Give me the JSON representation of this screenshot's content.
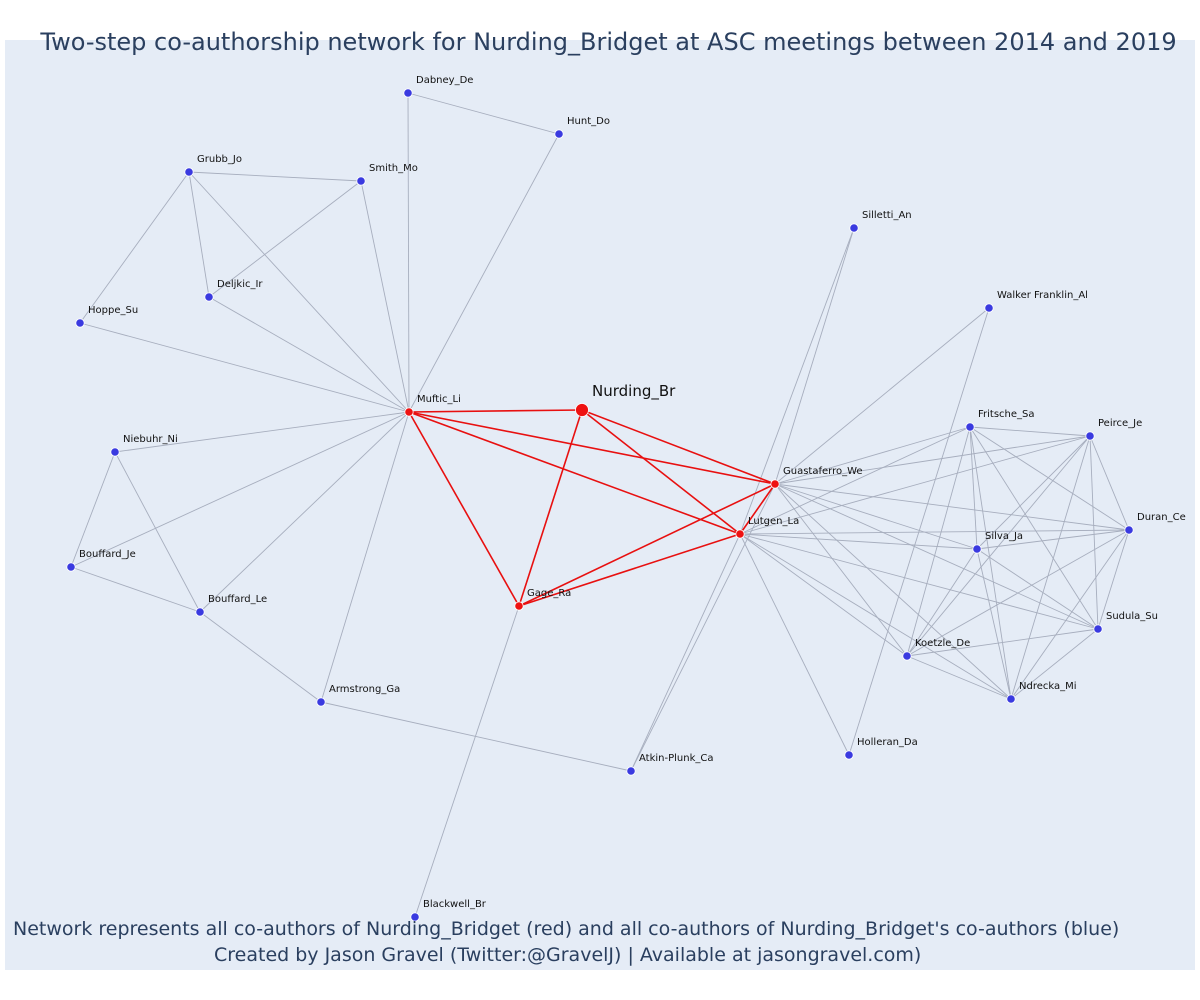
{
  "title": "Two-step co-authorship network for Nurding_Bridget at ASC meetings between 2014 and 2019",
  "footer": {
    "line1": "Network represents all co-authors of Nurding_Bridget (red) and all co-authors of Nurding_Bridget's co-authors (blue)",
    "line2": "Created by Jason Gravel (Twitter:@GravelJ) | Available at jasongravel.com)"
  },
  "colors": {
    "background": "#e5ecf6",
    "first_degree": "#ee1111",
    "second_degree": "#3a3ae0",
    "red_edge": "#e81010",
    "grey_edge": "#a7aebe"
  },
  "nodes": [
    {
      "id": "Nurding_Br",
      "label": "Nurding_Br",
      "group": "focal"
    },
    {
      "id": "Muftic_Li",
      "label": "Muftic_Li",
      "group": "first"
    },
    {
      "id": "Gage_Ra",
      "label": "Gage_Ra",
      "group": "first"
    },
    {
      "id": "Guastaferro_We",
      "label": "Guastaferro_We",
      "group": "first"
    },
    {
      "id": "Lutgen_La",
      "label": "Lutgen_La",
      "group": "first"
    },
    {
      "id": "Dabney_De",
      "label": "Dabney_De",
      "group": "second"
    },
    {
      "id": "Hunt_Do",
      "label": "Hunt_Do",
      "group": "second"
    },
    {
      "id": "Grubb_Jo",
      "label": "Grubb_Jo",
      "group": "second"
    },
    {
      "id": "Smith_Mo",
      "label": "Smith_Mo",
      "group": "second"
    },
    {
      "id": "Deljkic_Ir",
      "label": "Deljkic_Ir",
      "group": "second"
    },
    {
      "id": "Hoppe_Su",
      "label": "Hoppe_Su",
      "group": "second"
    },
    {
      "id": "Niebuhr_Ni",
      "label": "Niebuhr_Ni",
      "group": "second"
    },
    {
      "id": "Bouffard_Je",
      "label": "Bouffard_Je",
      "group": "second"
    },
    {
      "id": "Bouffard_Le",
      "label": "Bouffard_Le",
      "group": "second"
    },
    {
      "id": "Armstrong_Ga",
      "label": "Armstrong_Ga",
      "group": "second"
    },
    {
      "id": "Atkin-Plunk_Ca",
      "label": "Atkin-Plunk_Ca",
      "group": "second"
    },
    {
      "id": "Blackwell_Br",
      "label": "Blackwell_Br",
      "group": "second"
    },
    {
      "id": "Silletti_An",
      "label": "Silletti_An",
      "group": "second"
    },
    {
      "id": "Walker Franklin_Al",
      "label": "Walker Franklin_Al",
      "group": "second"
    },
    {
      "id": "Fritsche_Sa",
      "label": "Fritsche_Sa",
      "group": "second"
    },
    {
      "id": "Peirce_Je",
      "label": "Peirce_Je",
      "group": "second"
    },
    {
      "id": "Duran_Ce",
      "label": "Duran_Ce",
      "group": "second"
    },
    {
      "id": "Silva_Ja",
      "label": "Silva_Ja",
      "group": "second"
    },
    {
      "id": "Sudula_Su",
      "label": "Sudula_Su",
      "group": "second"
    },
    {
      "id": "Koetzle_De",
      "label": "Koetzle_De",
      "group": "second"
    },
    {
      "id": "Ndrecka_Mi",
      "label": "Ndrecka_Mi",
      "group": "second"
    },
    {
      "id": "Holleran_Da",
      "label": "Holleran_Da",
      "group": "second"
    }
  ],
  "edges": [
    [
      "Nurding_Br",
      "Muftic_Li"
    ],
    [
      "Nurding_Br",
      "Gage_Ra"
    ],
    [
      "Nurding_Br",
      "Guastaferro_We"
    ],
    [
      "Nurding_Br",
      "Lutgen_La"
    ],
    [
      "Muftic_Li",
      "Gage_Ra"
    ],
    [
      "Muftic_Li",
      "Guastaferro_We"
    ],
    [
      "Muftic_Li",
      "Lutgen_La"
    ],
    [
      "Gage_Ra",
      "Guastaferro_We"
    ],
    [
      "Gage_Ra",
      "Lutgen_La"
    ],
    [
      "Guastaferro_We",
      "Lutgen_La"
    ],
    [
      "Dabney_De",
      "Hunt_Do"
    ],
    [
      "Dabney_De",
      "Muftic_Li"
    ],
    [
      "Hunt_Do",
      "Muftic_Li"
    ],
    [
      "Grubb_Jo",
      "Smith_Mo"
    ],
    [
      "Grubb_Jo",
      "Deljkic_Ir"
    ],
    [
      "Grubb_Jo",
      "Hoppe_Su"
    ],
    [
      "Grubb_Jo",
      "Muftic_Li"
    ],
    [
      "Smith_Mo",
      "Deljkic_Ir"
    ],
    [
      "Smith_Mo",
      "Muftic_Li"
    ],
    [
      "Deljkic_Ir",
      "Muftic_Li"
    ],
    [
      "Hoppe_Su",
      "Muftic_Li"
    ],
    [
      "Niebuhr_Ni",
      "Muftic_Li"
    ],
    [
      "Niebuhr_Ni",
      "Bouffard_Je"
    ],
    [
      "Niebuhr_Ni",
      "Bouffard_Le"
    ],
    [
      "Bouffard_Je",
      "Muftic_Li"
    ],
    [
      "Bouffard_Je",
      "Bouffard_Le"
    ],
    [
      "Bouffard_Le",
      "Muftic_Li"
    ],
    [
      "Bouffard_Le",
      "Armstrong_Ga"
    ],
    [
      "Armstrong_Ga",
      "Muftic_Li"
    ],
    [
      "Armstrong_Ga",
      "Atkin-Plunk_Ca"
    ],
    [
      "Blackwell_Br",
      "Gage_Ra"
    ],
    [
      "Atkin-Plunk_Ca",
      "Lutgen_La"
    ],
    [
      "Atkin-Plunk_Ca",
      "Guastaferro_We"
    ],
    [
      "Silletti_An",
      "Guastaferro_We"
    ],
    [
      "Silletti_An",
      "Lutgen_La"
    ],
    [
      "Walker Franklin_Al",
      "Guastaferro_We"
    ],
    [
      "Walker Franklin_Al",
      "Holleran_Da"
    ],
    [
      "Holleran_Da",
      "Lutgen_La"
    ],
    [
      "Fritsche_Sa",
      "Guastaferro_We"
    ],
    [
      "Fritsche_Sa",
      "Lutgen_La"
    ],
    [
      "Fritsche_Sa",
      "Peirce_Je"
    ],
    [
      "Fritsche_Sa",
      "Duran_Ce"
    ],
    [
      "Fritsche_Sa",
      "Silva_Ja"
    ],
    [
      "Fritsche_Sa",
      "Sudula_Su"
    ],
    [
      "Fritsche_Sa",
      "Koetzle_De"
    ],
    [
      "Fritsche_Sa",
      "Ndrecka_Mi"
    ],
    [
      "Peirce_Je",
      "Guastaferro_We"
    ],
    [
      "Peirce_Je",
      "Lutgen_La"
    ],
    [
      "Peirce_Je",
      "Duran_Ce"
    ],
    [
      "Peirce_Je",
      "Silva_Ja"
    ],
    [
      "Peirce_Je",
      "Sudula_Su"
    ],
    [
      "Peirce_Je",
      "Koetzle_De"
    ],
    [
      "Peirce_Je",
      "Ndrecka_Mi"
    ],
    [
      "Duran_Ce",
      "Guastaferro_We"
    ],
    [
      "Duran_Ce",
      "Lutgen_La"
    ],
    [
      "Duran_Ce",
      "Silva_Ja"
    ],
    [
      "Duran_Ce",
      "Sudula_Su"
    ],
    [
      "Duran_Ce",
      "Koetzle_De"
    ],
    [
      "Duran_Ce",
      "Ndrecka_Mi"
    ],
    [
      "Silva_Ja",
      "Guastaferro_We"
    ],
    [
      "Silva_Ja",
      "Lutgen_La"
    ],
    [
      "Silva_Ja",
      "Sudula_Su"
    ],
    [
      "Silva_Ja",
      "Koetzle_De"
    ],
    [
      "Silva_Ja",
      "Ndrecka_Mi"
    ],
    [
      "Sudula_Su",
      "Guastaferro_We"
    ],
    [
      "Sudula_Su",
      "Lutgen_La"
    ],
    [
      "Sudula_Su",
      "Koetzle_De"
    ],
    [
      "Sudula_Su",
      "Ndrecka_Mi"
    ],
    [
      "Koetzle_De",
      "Guastaferro_We"
    ],
    [
      "Koetzle_De",
      "Lutgen_La"
    ],
    [
      "Koetzle_De",
      "Ndrecka_Mi"
    ],
    [
      "Ndrecka_Mi",
      "Guastaferro_We"
    ],
    [
      "Ndrecka_Mi",
      "Lutgen_La"
    ]
  ]
}
